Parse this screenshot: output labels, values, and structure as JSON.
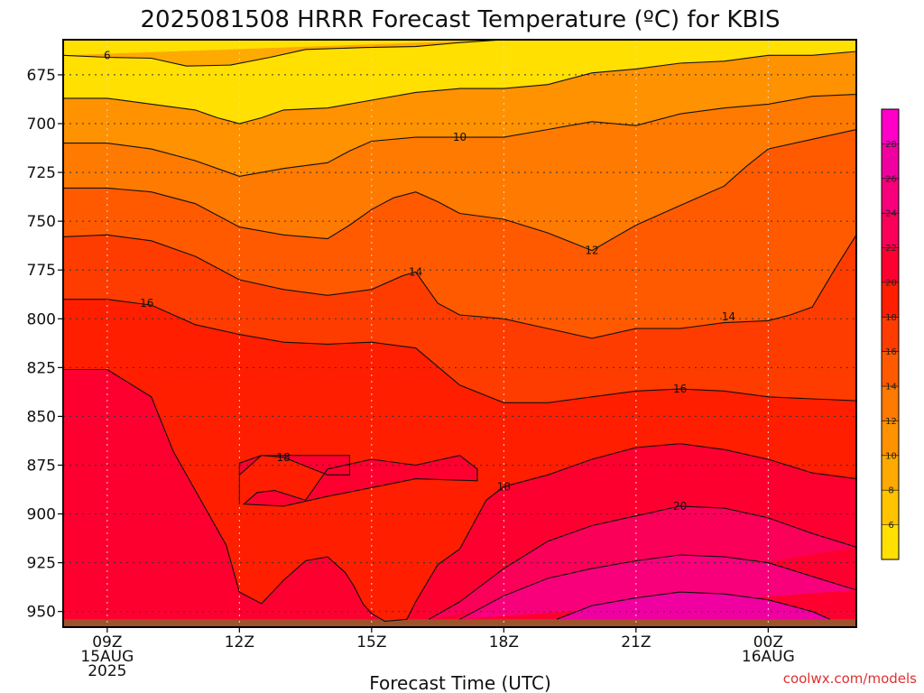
{
  "chart_data": {
    "type": "contour",
    "title": "2025081508 HRRR Forecast Temperature (ºC) for KBIS",
    "xlabel": "Forecast Time (UTC)",
    "ylabel": "",
    "credit": "coolwx.com/models",
    "x_ticks": [
      {
        "hour": 9,
        "lines": [
          "09Z",
          "15AUG",
          "2025"
        ]
      },
      {
        "hour": 12,
        "lines": [
          "12Z"
        ]
      },
      {
        "hour": 15,
        "lines": [
          "15Z"
        ]
      },
      {
        "hour": 18,
        "lines": [
          "18Z"
        ]
      },
      {
        "hour": 21,
        "lines": [
          "21Z"
        ]
      },
      {
        "hour": 24,
        "lines": [
          "00Z",
          "16AUG"
        ]
      }
    ],
    "xlim": [
      8,
      26
    ],
    "y_ticks": [
      675,
      700,
      725,
      750,
      775,
      800,
      825,
      850,
      875,
      900,
      925,
      950
    ],
    "ylim_hpa": [
      657,
      958
    ],
    "surface_hpa": 954,
    "colorbar": {
      "levels": [
        4,
        6,
        8,
        10,
        12,
        14,
        16,
        18,
        20,
        22,
        24,
        26,
        28,
        30
      ],
      "labels": [
        "6",
        "8",
        "10",
        "12",
        "14",
        "16",
        "18",
        "20",
        "22",
        "24",
        "26",
        "28"
      ],
      "colors": [
        "#ffe000",
        "#ffc300",
        "#ffaa00",
        "#ff9200",
        "#ff7a00",
        "#ff5a00",
        "#ff3c00",
        "#ff1e00",
        "#fe0030",
        "#fa0058",
        "#f8007c",
        "#f000a0",
        "#ff00c8"
      ]
    },
    "contours": [
      {
        "level": 6,
        "label": "6",
        "points": [
          [
            8,
            665
          ],
          [
            9,
            666
          ],
          [
            10,
            666.5
          ],
          [
            10.8,
            670.5
          ],
          [
            11.8,
            670
          ],
          [
            12.7,
            666
          ],
          [
            13.5,
            662
          ],
          [
            14.8,
            661
          ],
          [
            16,
            660.5
          ],
          [
            17,
            658.5
          ],
          [
            18,
            657
          ]
        ]
      },
      {
        "level": 8,
        "label": "",
        "points": [
          [
            8,
            687
          ],
          [
            9,
            687
          ],
          [
            10,
            690
          ],
          [
            11,
            693
          ],
          [
            11.5,
            697
          ],
          [
            12,
            700
          ],
          [
            12.5,
            697
          ],
          [
            13,
            693
          ],
          [
            14,
            692
          ],
          [
            15,
            688
          ],
          [
            16,
            684
          ],
          [
            17,
            682
          ],
          [
            18,
            682
          ],
          [
            19,
            680
          ],
          [
            20,
            674
          ],
          [
            21,
            672
          ],
          [
            22,
            669
          ],
          [
            23,
            668
          ],
          [
            24,
            665
          ],
          [
            25,
            665
          ],
          [
            26,
            663
          ]
        ]
      },
      {
        "level": 10,
        "label": "10",
        "points": [
          [
            8,
            710
          ],
          [
            9,
            710
          ],
          [
            10,
            713
          ],
          [
            11,
            719
          ],
          [
            12,
            727
          ],
          [
            12.5,
            725
          ],
          [
            13,
            723
          ],
          [
            14,
            720
          ],
          [
            14.5,
            714
          ],
          [
            15,
            709
          ],
          [
            16,
            707
          ],
          [
            17,
            707
          ],
          [
            18,
            707
          ],
          [
            19,
            703
          ],
          [
            20,
            699
          ],
          [
            21,
            701
          ],
          [
            22,
            695
          ],
          [
            23,
            692
          ],
          [
            24,
            690
          ],
          [
            25,
            686
          ],
          [
            26,
            685
          ]
        ]
      },
      {
        "level": 12,
        "label": "12",
        "points": [
          [
            8,
            733
          ],
          [
            9,
            733
          ],
          [
            10,
            735
          ],
          [
            11,
            741
          ],
          [
            12,
            753
          ],
          [
            13,
            757
          ],
          [
            14,
            759
          ],
          [
            14.5,
            752
          ],
          [
            15,
            744
          ],
          [
            15.5,
            738
          ],
          [
            16,
            735
          ],
          [
            16.5,
            740
          ],
          [
            17,
            746
          ],
          [
            18,
            749
          ],
          [
            19,
            756
          ],
          [
            20,
            765
          ],
          [
            21,
            752
          ],
          [
            22,
            742
          ],
          [
            23,
            732
          ],
          [
            23.5,
            722
          ],
          [
            24,
            713
          ],
          [
            25,
            708
          ],
          [
            26,
            703
          ]
        ]
      },
      {
        "level": 14,
        "label": "14",
        "points": [
          [
            8,
            758
          ],
          [
            9,
            757
          ],
          [
            10,
            760
          ],
          [
            11,
            768
          ],
          [
            12,
            780
          ],
          [
            13,
            785
          ],
          [
            14,
            788
          ],
          [
            15,
            785
          ],
          [
            15.7,
            778
          ],
          [
            16,
            776
          ],
          [
            16.5,
            792
          ],
          [
            17,
            798
          ],
          [
            18,
            800
          ],
          [
            19,
            805
          ],
          [
            20,
            810
          ],
          [
            21,
            805
          ],
          [
            22,
            805
          ],
          [
            23,
            802
          ],
          [
            24,
            801
          ],
          [
            24.5,
            798
          ],
          [
            25,
            794
          ],
          [
            25.5,
            775
          ],
          [
            26,
            757
          ]
        ]
      },
      {
        "level": 16,
        "label": "16",
        "points": [
          [
            8,
            790
          ],
          [
            9,
            790
          ],
          [
            10,
            793
          ],
          [
            11,
            803
          ],
          [
            12,
            808
          ],
          [
            13,
            812
          ],
          [
            14,
            813
          ],
          [
            15,
            812
          ],
          [
            16,
            815
          ],
          [
            17,
            834
          ],
          [
            18,
            843
          ],
          [
            19,
            843
          ],
          [
            20,
            840
          ],
          [
            21,
            837
          ],
          [
            22,
            836
          ],
          [
            23,
            837
          ],
          [
            24,
            840
          ],
          [
            25,
            841
          ],
          [
            26,
            842
          ]
        ]
      },
      {
        "level": 18,
        "label": "18",
        "points": [
          [
            8,
            826
          ],
          [
            9,
            826
          ],
          [
            9.5,
            833
          ],
          [
            10,
            840
          ],
          [
            10.5,
            868
          ],
          [
            11,
            888
          ],
          [
            11.7,
            916
          ],
          [
            12,
            940
          ],
          [
            12.5,
            946
          ],
          [
            13,
            934
          ],
          [
            13.5,
            924
          ],
          [
            14,
            922
          ],
          [
            14.2,
            926
          ],
          [
            14.4,
            930
          ],
          [
            14.6,
            937
          ],
          [
            14.8,
            946
          ],
          [
            15,
            951
          ],
          [
            15.3,
            955
          ],
          [
            15.8,
            954
          ],
          [
            16,
            945
          ],
          [
            16.5,
            926
          ],
          [
            17,
            918
          ],
          [
            17.6,
            893
          ],
          [
            18,
            886
          ],
          [
            19,
            880
          ],
          [
            20,
            872
          ],
          [
            21,
            866
          ],
          [
            22,
            864
          ],
          [
            23,
            867
          ],
          [
            24,
            872
          ],
          [
            25,
            879
          ],
          [
            26,
            882
          ]
        ]
      },
      {
        "level": 18,
        "label": "",
        "closed": true,
        "points": [
          [
            12.1,
            895
          ],
          [
            12.4,
            889
          ],
          [
            12.8,
            888
          ],
          [
            13.5,
            893
          ],
          [
            14,
            877
          ],
          [
            15,
            872
          ],
          [
            16,
            875
          ],
          [
            17,
            870
          ],
          [
            17.4,
            877
          ],
          [
            17.4,
            883
          ],
          [
            16,
            882
          ],
          [
            14,
            891
          ],
          [
            13,
            896
          ],
          [
            12.1,
            895
          ]
        ]
      },
      {
        "level": 18,
        "label": "",
        "closed": true,
        "points": [
          [
            12,
            895
          ],
          [
            12,
            874
          ],
          [
            12.5,
            870
          ],
          [
            13,
            871
          ],
          [
            14,
            880
          ],
          [
            14.5,
            880
          ],
          [
            14.5,
            870
          ],
          [
            12.5,
            870
          ],
          [
            12,
            880
          ],
          [
            12,
            895
          ]
        ]
      },
      {
        "level": 20,
        "label": "20",
        "points": [
          [
            16.3,
            954
          ],
          [
            17,
            945
          ],
          [
            18,
            928
          ],
          [
            19,
            914
          ],
          [
            20,
            906
          ],
          [
            21,
            901
          ],
          [
            22,
            896
          ],
          [
            23,
            897
          ],
          [
            24,
            902
          ],
          [
            25,
            910
          ],
          [
            26,
            917
          ]
        ]
      },
      {
        "level": 22,
        "label": "",
        "points": [
          [
            17,
            954
          ],
          [
            18,
            942
          ],
          [
            19,
            933
          ],
          [
            20,
            928
          ],
          [
            21,
            924
          ],
          [
            22,
            921
          ],
          [
            23,
            922
          ],
          [
            24,
            925
          ],
          [
            25,
            932
          ],
          [
            26,
            939
          ]
        ]
      },
      {
        "level": 24,
        "label": "",
        "points": [
          [
            19.2,
            954
          ],
          [
            20,
            947
          ],
          [
            21,
            943
          ],
          [
            22,
            940
          ],
          [
            23,
            941
          ],
          [
            24,
            944
          ],
          [
            25,
            950
          ],
          [
            25.4,
            954
          ]
        ]
      }
    ],
    "contour_labels": [
      {
        "text": "6",
        "hour": 9,
        "hpa": 665
      },
      {
        "text": "10",
        "hour": 17,
        "hpa": 707
      },
      {
        "text": "12",
        "hour": 20,
        "hpa": 765
      },
      {
        "text": "14",
        "hour": 16,
        "hpa": 776
      },
      {
        "text": "14",
        "hour": 23.1,
        "hpa": 799
      },
      {
        "text": "16",
        "hour": 9.9,
        "hpa": 792
      },
      {
        "text": "16",
        "hour": 22,
        "hpa": 836
      },
      {
        "text": "18",
        "hour": 13,
        "hpa": 871
      },
      {
        "text": "18",
        "hour": 18,
        "hpa": 886
      },
      {
        "text": "20",
        "hour": 22,
        "hpa": 896
      }
    ]
  }
}
